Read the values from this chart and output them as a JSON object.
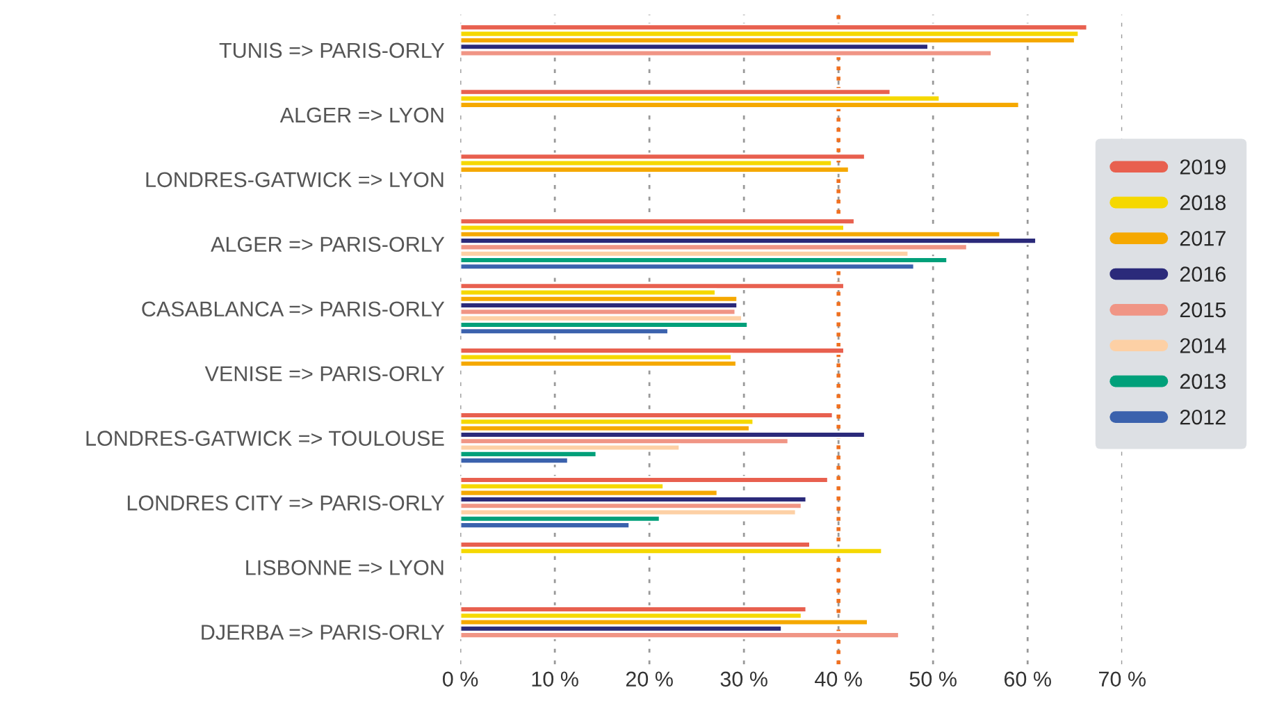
{
  "chart_data": {
    "type": "bar",
    "orientation": "horizontal",
    "categories": [
      "TUNIS => PARIS-ORLY",
      "ALGER => LYON",
      "LONDRES-GATWICK => LYON",
      "ALGER => PARIS-ORLY",
      "CASABLANCA => PARIS-ORLY",
      "VENISE => PARIS-ORLY",
      "LONDRES-GATWICK => TOULOUSE",
      "LONDRES CITY => PARIS-ORLY",
      "LISBONNE => LYON",
      "DJERBA => PARIS-ORLY"
    ],
    "series": [
      {
        "name": "2019",
        "color": "#e8604f",
        "values": [
          66.3,
          45.5,
          42.8,
          41.7,
          40.6,
          40.6,
          39.4,
          38.9,
          37.0,
          36.6
        ]
      },
      {
        "name": "2018",
        "color": "#f5d800",
        "values": [
          65.4,
          50.7,
          39.3,
          40.6,
          27.0,
          28.7,
          31.0,
          21.5,
          44.6,
          36.1
        ]
      },
      {
        "name": "2017",
        "color": "#f5a800",
        "values": [
          65.0,
          59.1,
          41.1,
          57.1,
          29.3,
          29.2,
          30.6,
          27.2,
          null,
          43.1
        ]
      },
      {
        "name": "2016",
        "color": "#2b2a7a",
        "values": [
          49.5,
          null,
          null,
          60.9,
          29.3,
          null,
          42.8,
          36.6,
          null,
          34.0
        ]
      },
      {
        "name": "2015",
        "color": "#f09585",
        "values": [
          56.2,
          null,
          null,
          53.6,
          29.1,
          null,
          34.7,
          36.1,
          null,
          46.4
        ]
      },
      {
        "name": "2014",
        "color": "#fdd0a5",
        "values": [
          null,
          null,
          null,
          47.4,
          29.8,
          null,
          23.2,
          35.5,
          null,
          null
        ]
      },
      {
        "name": "2013",
        "color": "#00a07a",
        "values": [
          null,
          null,
          null,
          51.5,
          30.4,
          null,
          14.4,
          21.1,
          null,
          null
        ]
      },
      {
        "name": "2012",
        "color": "#3b62ad",
        "values": [
          null,
          null,
          null,
          48.0,
          22.0,
          null,
          11.4,
          17.9,
          null,
          null
        ]
      }
    ],
    "xlim": [
      0,
      70
    ],
    "xticks": [
      {
        "value": 0,
        "label": "0 %"
      },
      {
        "value": 10,
        "label": "10 %"
      },
      {
        "value": 20,
        "label": "20 %"
      },
      {
        "value": 30,
        "label": "30 %"
      },
      {
        "value": 40,
        "label": "40 %"
      },
      {
        "value": 50,
        "label": "50 %"
      },
      {
        "value": 60,
        "label": "60 %"
      },
      {
        "value": 70,
        "label": "70 %"
      }
    ],
    "ref_lines": [
      {
        "axis": "x",
        "value": 40,
        "label": null,
        "color": "#f07020",
        "line_style": "dotted"
      }
    ],
    "grid": "x",
    "legend": "right"
  }
}
